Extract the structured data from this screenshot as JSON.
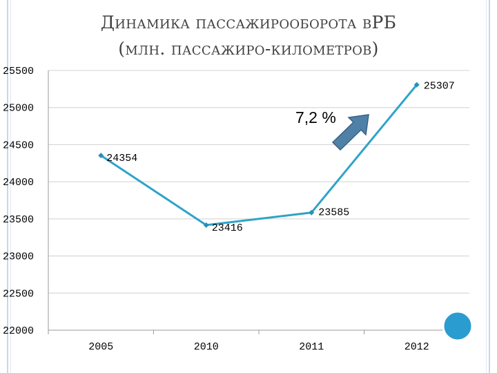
{
  "title_lines": [
    "Динамика пассажирооборота вРБ",
    "(млн. пассажиро-километров)"
  ],
  "annotation": "7,2 %",
  "colors": {
    "line": "#2ea3c8",
    "marker": "#2a90b6",
    "arrow": "#4f81a8",
    "arrow_stroke": "#3b5f80",
    "circle": "#2b9ccf"
  },
  "chart_data": {
    "type": "line",
    "title": "Динамика пассажирооборота вРБ (млн. пассажиро-километров)",
    "xlabel": "",
    "ylabel": "",
    "categories": [
      "2005",
      "2010",
      "2011",
      "2012"
    ],
    "series": [
      {
        "values": [
          24354,
          23416,
          23585,
          25307
        ]
      }
    ],
    "data_labels": [
      "24354",
      "23416",
      "23585",
      "25307"
    ],
    "ylim": [
      22000,
      25500
    ],
    "yticks": [
      22000,
      22500,
      23000,
      23500,
      24000,
      24500,
      25000,
      25500
    ],
    "grid": true,
    "legend": "none"
  }
}
